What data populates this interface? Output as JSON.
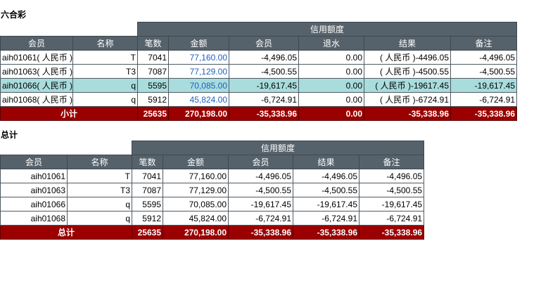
{
  "section1": {
    "title": "六合彩",
    "group_header": "信用额度",
    "columns": [
      "会员",
      "名称",
      "笔数",
      "金额",
      "会员",
      "退水",
      "结果",
      "备注"
    ],
    "rows": [
      {
        "member": "aih01061( 人民币 )",
        "name": "T",
        "count": "7041",
        "amount": "77,160.00",
        "member_val": "-4,496.05",
        "rebate": "0.00",
        "result": "( 人民币 )-4496.05",
        "note": "-4,496.05",
        "highlight": false
      },
      {
        "member": "aih01063( 人民币 )",
        "name": "T3",
        "count": "7087",
        "amount": "77,129.00",
        "member_val": "-4,500.55",
        "rebate": "0.00",
        "result": "( 人民币 )-4500.55",
        "note": "-4,500.55",
        "highlight": false
      },
      {
        "member": "aih01066( 人民币 )",
        "name": "q",
        "count": "5595",
        "amount": "70,085.00",
        "member_val": "-19,617.45",
        "rebate": "0.00",
        "result": "( 人民币 )-19617.45",
        "note": "-19,617.45",
        "highlight": true
      },
      {
        "member": "aih01068( 人民币 )",
        "name": "q",
        "count": "5912",
        "amount": "45,824.00",
        "member_val": "-6,724.91",
        "rebate": "0.00",
        "result": "( 人民币 )-6724.91",
        "note": "-6,724.91",
        "highlight": false
      }
    ],
    "subtotal": {
      "label": "小计",
      "count": "25635",
      "amount": "270,198.00",
      "member_val": "-35,338.96",
      "rebate": "0.00",
      "result": "-35,338.96",
      "note": "-35,338.96"
    }
  },
  "section2": {
    "title": "总计",
    "group_header": "信用额度",
    "columns": [
      "会员",
      "名称",
      "笔数",
      "金额",
      "会员",
      "结果",
      "备注"
    ],
    "rows": [
      {
        "member": "aih01061",
        "name": "T",
        "count": "7041",
        "amount": "77,160.00",
        "member_val": "-4,496.05",
        "result": "-4,496.05",
        "note": "-4,496.05"
      },
      {
        "member": "aih01063",
        "name": "T3",
        "count": "7087",
        "amount": "77,129.00",
        "member_val": "-4,500.55",
        "result": "-4,500.55",
        "note": "-4,500.55"
      },
      {
        "member": "aih01066",
        "name": "q",
        "count": "5595",
        "amount": "70,085.00",
        "member_val": "-19,617.45",
        "result": "-19,617.45",
        "note": "-19,617.45"
      },
      {
        "member": "aih01068",
        "name": "q",
        "count": "5912",
        "amount": "45,824.00",
        "member_val": "-6,724.91",
        "result": "-6,724.91",
        "note": "-6,724.91"
      }
    ],
    "total": {
      "label": "总计",
      "count": "25635",
      "amount": "270,198.00",
      "member_val": "-35,338.96",
      "result": "-35,338.96",
      "note": "-35,338.96"
    }
  },
  "colors": {
    "header": "#56626b",
    "subtotal": "#9b0000",
    "highlight": "#a9dcdc",
    "link": "#1f5fbf"
  }
}
